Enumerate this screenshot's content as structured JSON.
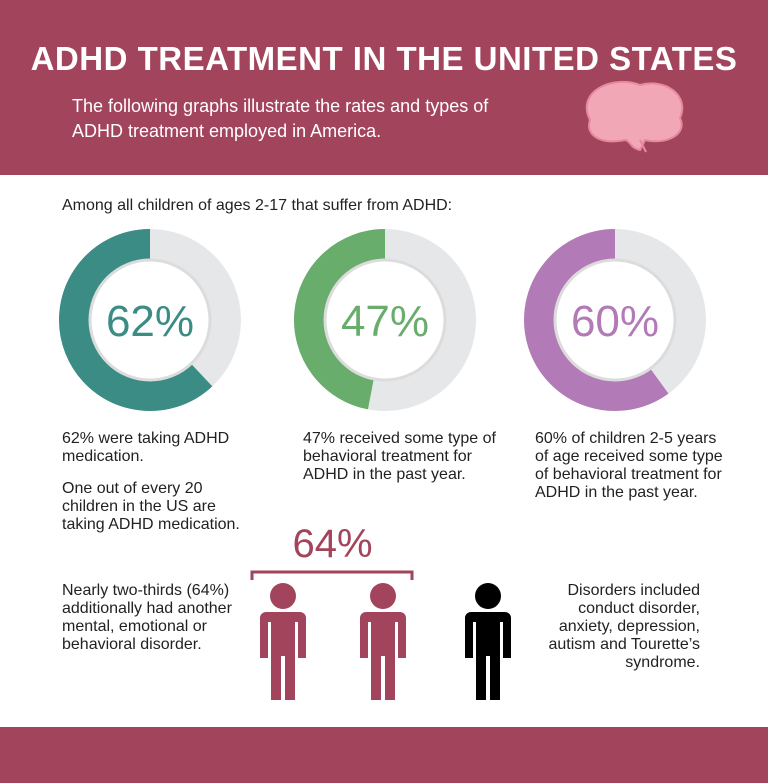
{
  "header": {
    "title": "ADHD TREATMENT IN THE UNITED STATES",
    "subtitle": "The following graphs illustrate the rates and types of ADHD treatment employed in America."
  },
  "intro": "Among all children of ages 2-17 that suffer from ADHD:",
  "chart_data": [
    {
      "type": "donut",
      "values": [
        62
      ],
      "value_labels": [
        "62%"
      ],
      "color": "#3a8c84",
      "captions": [
        "62% were taking ADHD medication.",
        "One out of every 20 children in the US are taking ADHD medication."
      ]
    },
    {
      "type": "donut",
      "values": [
        47
      ],
      "value_labels": [
        "47%"
      ],
      "color": "#68ad6c",
      "captions": [
        "47% received some type of behavioral treatment for ADHD in the past year."
      ]
    },
    {
      "type": "donut",
      "values": [
        60
      ],
      "value_labels": [
        "60%"
      ],
      "color": "#b27ab6",
      "captions": [
        "60% of children 2-5 years of age received some type of behavioral treatment for ADHD in the past year."
      ]
    }
  ],
  "pictograph": {
    "label": "64%",
    "left_text": "Nearly two-thirds (64%) additionally had another mental, emotional or behavioral disorder.",
    "right_text": "Disorders included conduct disorder, anxiety, depression, autism and Tourette’s syndrome."
  }
}
